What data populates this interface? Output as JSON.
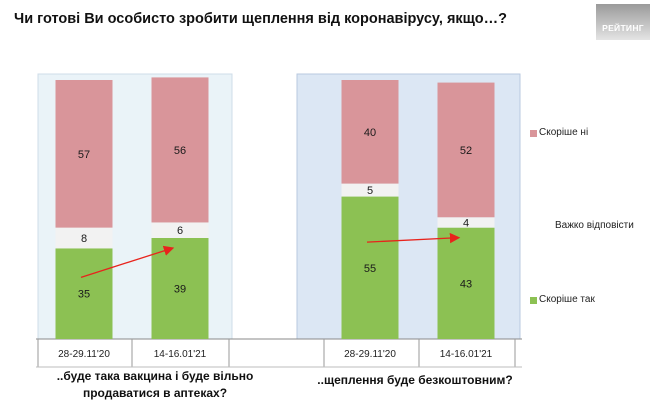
{
  "title": "Чи готові Ви особисто зробити щеплення від коронавірусу, якщо…?",
  "brand_label": "РЕЙТИНГ",
  "chart_data": {
    "type": "bar",
    "stacked": true,
    "percent_scale": [
      0,
      100
    ],
    "groups": [
      {
        "label_line1": "..буде така вакцина і буде вільно",
        "label_line2": "продаватися в аптеках?",
        "categories": [
          "28-29.11'20",
          "14-16.01'21"
        ]
      },
      {
        "label_line1": "..щеплення буде безкоштовним?",
        "label_line2": "",
        "categories": [
          "28-29.11'20",
          "14-16.01'21"
        ]
      }
    ],
    "series": [
      {
        "name": "Скоріше так",
        "color": "#8cc153",
        "values": [
          35,
          39,
          55,
          43
        ]
      },
      {
        "name": "Важко відповісти",
        "color": "#f2f2f2",
        "values": [
          8,
          6,
          5,
          4
        ]
      },
      {
        "name": "Скоріше ні",
        "color": "#d9959a",
        "values": [
          57,
          56,
          40,
          52
        ]
      }
    ],
    "trend_arrows": [
      {
        "group": 0,
        "from_category": 0,
        "to_category": 1,
        "color": "#e8231c"
      },
      {
        "group": 1,
        "from_category": 0,
        "to_category": 1,
        "color": "#e8231c"
      }
    ],
    "panel_colors": [
      "#eaf3f8",
      "#dce7f4"
    ]
  },
  "legend": [
    {
      "label": "Скоріше  ні",
      "color": "#d9959a"
    },
    {
      "label": "Важко відповісти",
      "color": ""
    },
    {
      "label": "Скоріше  так",
      "color": "#8cc153"
    }
  ]
}
